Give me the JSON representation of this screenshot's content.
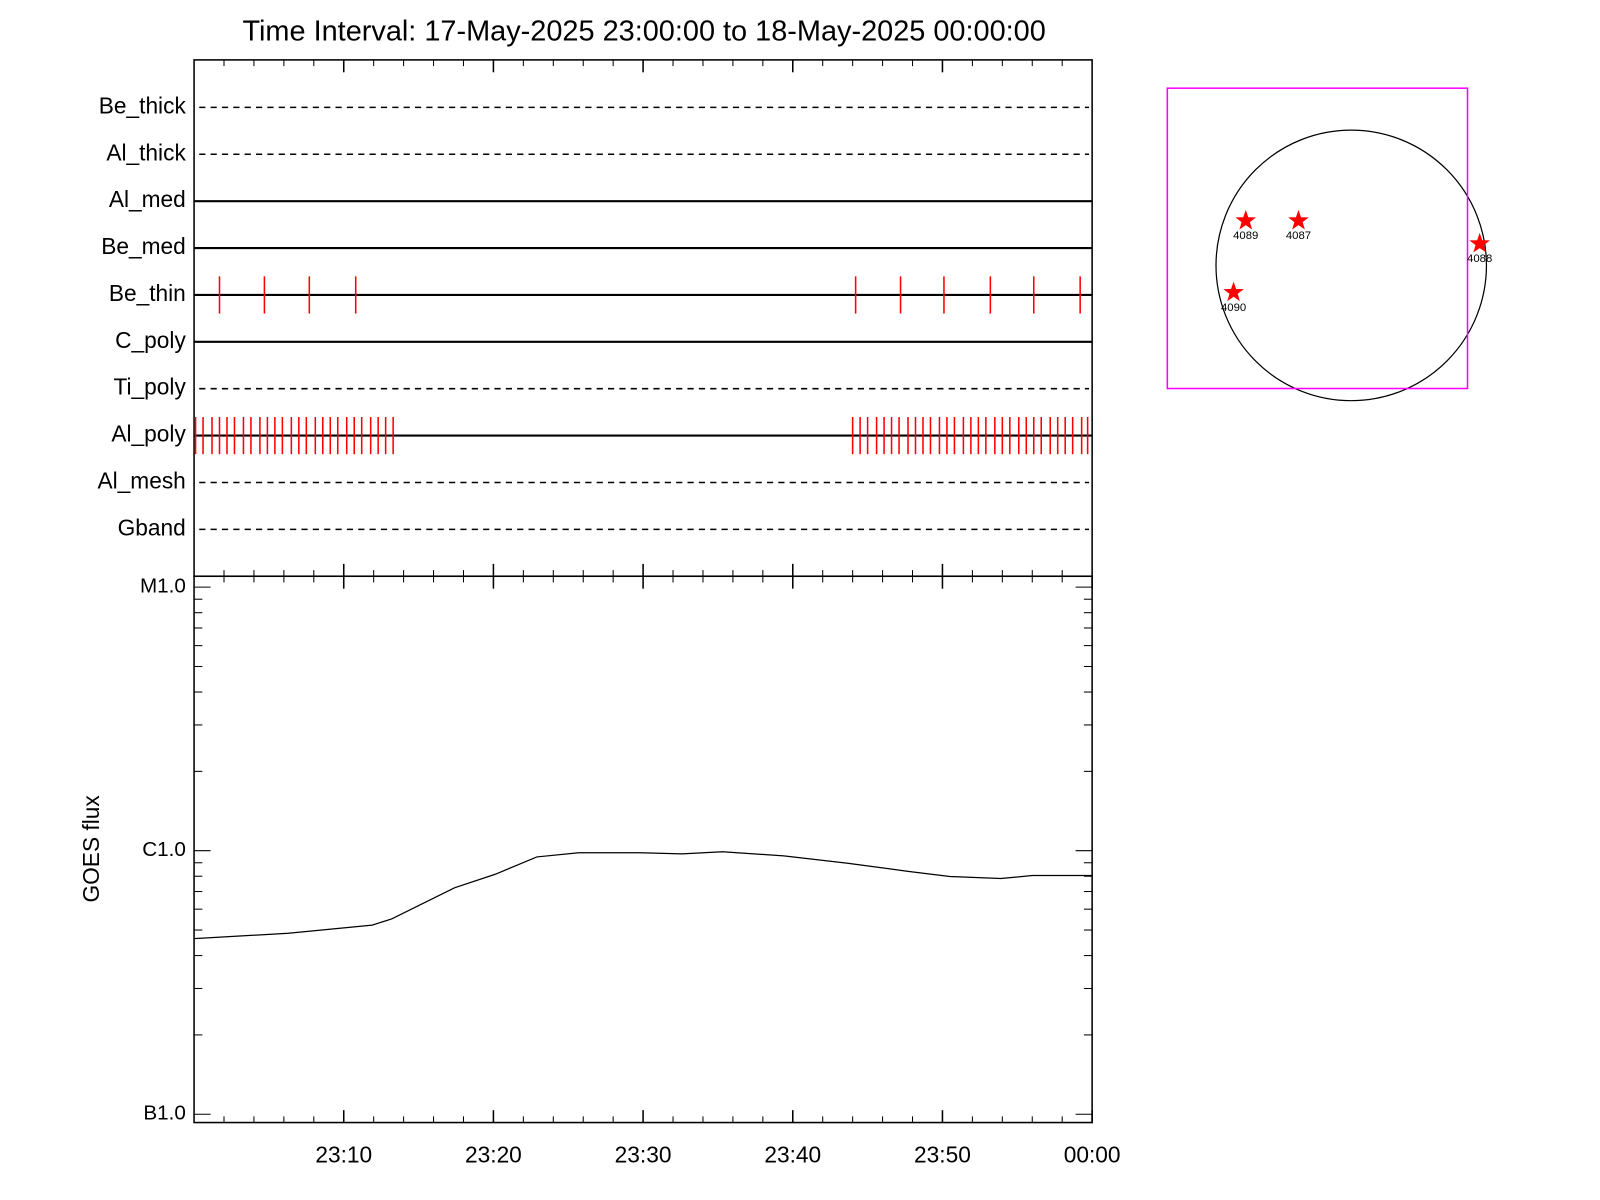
{
  "chart_data": [
    {
      "type": "timeline",
      "title": "Time Interval: 17-May-2025 23:00:00 to 18-May-2025 00:00:00",
      "xlim": [
        0,
        60
      ],
      "xticks": [
        10,
        20,
        30,
        40,
        50
      ],
      "xminorticks": [
        2,
        4,
        6,
        8,
        12,
        14,
        16,
        18,
        22,
        24,
        26,
        28,
        32,
        34,
        36,
        38,
        42,
        44,
        46,
        48,
        52,
        54,
        56,
        58
      ],
      "series": [
        {
          "name": "Be_thick",
          "line": "dashed",
          "color": "#ff0000",
          "values": []
        },
        {
          "name": "Al_thick",
          "line": "dashed",
          "color": "#ff0000",
          "values": []
        },
        {
          "name": "Al_med",
          "line": "solid",
          "color": "#ff0000",
          "values": []
        },
        {
          "name": "Be_med",
          "line": "solid",
          "color": "#ff0000",
          "values": []
        },
        {
          "name": "Be_thin",
          "line": "solid",
          "color": "#ff0000",
          "values": [
            1.7,
            4.7,
            7.7,
            10.8,
            44.2,
            47.2,
            50.1,
            53.2,
            56.1,
            59.2
          ]
        },
        {
          "name": "C_poly",
          "line": "solid",
          "color": "#ff0000",
          "values": []
        },
        {
          "name": "Ti_poly",
          "line": "dashed",
          "color": "#ff0000",
          "values": []
        },
        {
          "name": "Al_poly",
          "line": "solid",
          "color": "#ff0000",
          "values": [
            0.1,
            0.6,
            1.2,
            1.7,
            2.2,
            2.7,
            3.3,
            3.8,
            4.4,
            4.9,
            5.4,
            5.9,
            6.5,
            7.0,
            7.5,
            8.1,
            8.6,
            9.1,
            9.6,
            10.2,
            10.7,
            11.2,
            11.8,
            12.3,
            12.8,
            13.3,
            44.0,
            44.5,
            45.0,
            45.6,
            46.1,
            46.6,
            47.1,
            47.7,
            48.2,
            48.7,
            49.2,
            49.8,
            50.3,
            50.8,
            51.4,
            51.9,
            52.4,
            52.9,
            53.5,
            54.0,
            54.5,
            55.1,
            55.6,
            56.1,
            56.6,
            57.2,
            57.7,
            58.2,
            58.7,
            59.3,
            59.7
          ]
        },
        {
          "name": "Al_mesh",
          "line": "dashed",
          "color": "#ff0000",
          "values": []
        },
        {
          "name": "Gband",
          "line": "dashed",
          "color": "#ff0000",
          "values": []
        }
      ]
    },
    {
      "type": "line",
      "ylabel": "GOES flux",
      "log_scale": true,
      "color": "#000000",
      "xlim": [
        0,
        60
      ],
      "xticks": [
        {
          "value": 10,
          "label": "23:10"
        },
        {
          "value": 20,
          "label": "23:20"
        },
        {
          "value": 30,
          "label": "23:30"
        },
        {
          "value": 40,
          "label": "23:40"
        },
        {
          "value": 50,
          "label": "23:50"
        },
        {
          "value": 60,
          "label": "00:00"
        }
      ],
      "xminorticks": [
        2,
        4,
        6,
        8,
        12,
        14,
        16,
        18,
        22,
        24,
        26,
        28,
        32,
        34,
        36,
        38,
        42,
        44,
        46,
        48,
        52,
        54,
        56,
        58
      ],
      "ylim": [
        9.3e-08,
        1.1e-05
      ],
      "yticks": [
        {
          "value": 1e-07,
          "label": "B1.0"
        },
        {
          "value": 1e-06,
          "label": "C1.0"
        },
        {
          "value": 1e-05,
          "label": "M1.0"
        }
      ],
      "yminorticks": [
        2e-07,
        3e-07,
        4e-07,
        5e-07,
        6e-07,
        7e-07,
        8e-07,
        9e-07,
        2e-06,
        3e-06,
        4e-06,
        5e-06,
        6e-06,
        7e-06,
        8e-06,
        9e-06
      ],
      "x": [
        0,
        6.3,
        11.9,
        13.2,
        17.4,
        20.1,
        22.9,
        25.7,
        29.8,
        32.6,
        35.3,
        39.4,
        43.6,
        47.7,
        50.5,
        53.9,
        56.0,
        60
      ],
      "values": [
        4.64e-07,
        4.86e-07,
        5.22e-07,
        5.51e-07,
        7.23e-07,
        8.13e-07,
        9.47e-07,
        9.82e-07,
        9.82e-07,
        9.73e-07,
        9.91e-07,
        9.56e-07,
        8.97e-07,
        8.35e-07,
        7.98e-07,
        7.84e-07,
        8.05e-07,
        8.05e-07
      ]
    },
    {
      "type": "map",
      "color": "#ff0000",
      "disk_color": "#000000",
      "fov_color": "#ff00ff",
      "fov_x": [
        -1.36,
        0.86
      ],
      "fov_y": [
        -0.91,
        1.31
      ],
      "labels": [
        "4089",
        "4087",
        "4088",
        "4090"
      ],
      "x": [
        -0.78,
        -0.39,
        0.95,
        -0.87
      ],
      "y": [
        0.33,
        0.33,
        0.16,
        -0.2
      ]
    }
  ]
}
